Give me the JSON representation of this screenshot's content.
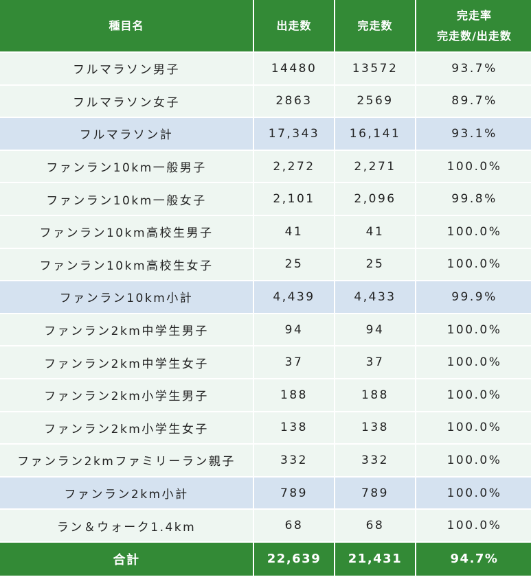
{
  "table": {
    "headers": {
      "event": "種目名",
      "starters": "出走数",
      "finishers": "完走数",
      "rate_line1": "完走率",
      "rate_line2": "完走数/出走数"
    },
    "rows": [
      {
        "event": "フルマラソン男子",
        "starters": "14480",
        "finishers": "13572",
        "rate": "93.7%",
        "type": "normal"
      },
      {
        "event": "フルマラソン女子",
        "starters": "2863",
        "finishers": "2569",
        "rate": "89.7%",
        "type": "normal"
      },
      {
        "event": "フルマラソン計",
        "starters": "17,343",
        "finishers": "16,141",
        "rate": "93.1%",
        "type": "subtotal"
      },
      {
        "event": "ファンラン10km一般男子",
        "starters": "2,272",
        "finishers": "2,271",
        "rate": "100.0%",
        "type": "normal"
      },
      {
        "event": "ファンラン10km一般女子",
        "starters": "2,101",
        "finishers": "2,096",
        "rate": "99.8%",
        "type": "normal"
      },
      {
        "event": "ファンラン10km高校生男子",
        "starters": "41",
        "finishers": "41",
        "rate": "100.0%",
        "type": "normal"
      },
      {
        "event": "ファンラン10km高校生女子",
        "starters": "25",
        "finishers": "25",
        "rate": "100.0%",
        "type": "normal"
      },
      {
        "event": "ファンラン10km小計",
        "starters": "4,439",
        "finishers": "4,433",
        "rate": "99.9%",
        "type": "subtotal"
      },
      {
        "event": "ファンラン2km中学生男子",
        "starters": "94",
        "finishers": "94",
        "rate": "100.0%",
        "type": "normal"
      },
      {
        "event": "ファンラン2km中学生女子",
        "starters": "37",
        "finishers": "37",
        "rate": "100.0%",
        "type": "normal"
      },
      {
        "event": "ファンラン2km小学生男子",
        "starters": "188",
        "finishers": "188",
        "rate": "100.0%",
        "type": "normal"
      },
      {
        "event": "ファンラン2km小学生女子",
        "starters": "138",
        "finishers": "138",
        "rate": "100.0%",
        "type": "normal"
      },
      {
        "event": "ファンラン2kmファミリーラン親子",
        "starters": "332",
        "finishers": "332",
        "rate": "100.0%",
        "type": "normal"
      },
      {
        "event": "ファンラン2km小計",
        "starters": "789",
        "finishers": "789",
        "rate": "100.0%",
        "type": "subtotal"
      },
      {
        "event": "ラン＆ウォーク1.4km",
        "starters": "68",
        "finishers": "68",
        "rate": "100.0%",
        "type": "normal"
      }
    ],
    "total": {
      "event": "合計",
      "starters": "22,639",
      "finishers": "21,431",
      "rate": "94.7%"
    }
  },
  "colors": {
    "header_green": "#338a36",
    "row_bg": "#eef6f1",
    "subtotal_bg": "#d5e2f0",
    "text": "#222222"
  }
}
